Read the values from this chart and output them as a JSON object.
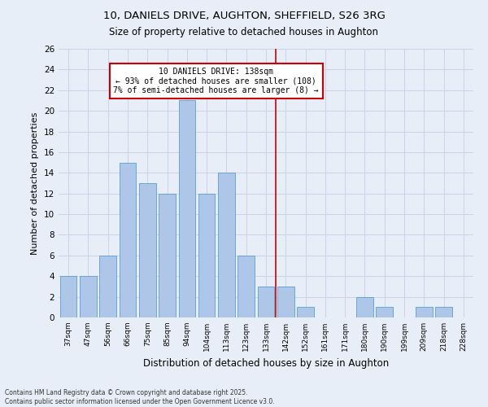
{
  "title_line1": "10, DANIELS DRIVE, AUGHTON, SHEFFIELD, S26 3RG",
  "title_line2": "Size of property relative to detached houses in Aughton",
  "xlabel": "Distribution of detached houses by size in Aughton",
  "ylabel": "Number of detached properties",
  "bins": [
    "37sqm",
    "47sqm",
    "56sqm",
    "66sqm",
    "75sqm",
    "85sqm",
    "94sqm",
    "104sqm",
    "113sqm",
    "123sqm",
    "133sqm",
    "142sqm",
    "152sqm",
    "161sqm",
    "171sqm",
    "180sqm",
    "190sqm",
    "199sqm",
    "209sqm",
    "218sqm",
    "228sqm"
  ],
  "values": [
    4,
    4,
    6,
    15,
    13,
    12,
    21,
    12,
    14,
    6,
    3,
    3,
    1,
    0,
    0,
    2,
    1,
    0,
    1,
    1,
    0
  ],
  "bar_color": "#aec6e8",
  "bar_edge_color": "#5a9fd4",
  "bar_width": 0.85,
  "vline_x": 10.5,
  "vline_color": "#cc0000",
  "annotation_title": "10 DANIELS DRIVE: 138sqm",
  "annotation_line1": "← 93% of detached houses are smaller (108)",
  "annotation_line2": "7% of semi-detached houses are larger (8) →",
  "annotation_box_color": "#ffffff",
  "annotation_box_edge": "#cc0000",
  "ylim": [
    0,
    26
  ],
  "yticks": [
    0,
    2,
    4,
    6,
    8,
    10,
    12,
    14,
    16,
    18,
    20,
    22,
    24,
    26
  ],
  "grid_color": "#c8d4e8",
  "background_color": "#e8eef8",
  "footer_line1": "Contains HM Land Registry data © Crown copyright and database right 2025.",
  "footer_line2": "Contains public sector information licensed under the Open Government Licence v3.0."
}
